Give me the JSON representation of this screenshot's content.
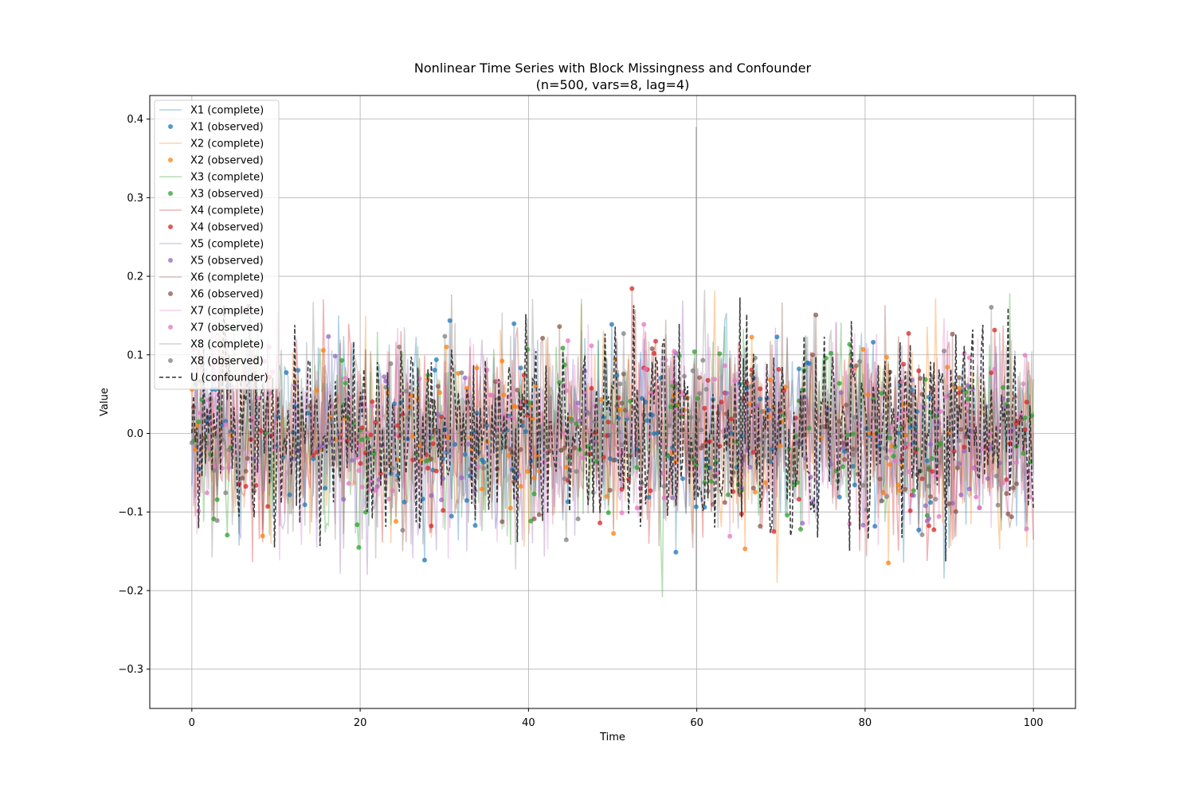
{
  "chart_data": {
    "type": "line",
    "title": "Nonlinear Time Series with Block Missingness and Confounder",
    "subtitle": "(n=500, vars=8, lag=4)",
    "xlabel": "Time",
    "ylabel": "Value",
    "xlim": [
      -5,
      105
    ],
    "ylim": [
      -0.35,
      0.43
    ],
    "x_ticks": [
      0,
      20,
      40,
      60,
      80,
      100
    ],
    "y_ticks": [
      -0.3,
      -0.2,
      -0.1,
      0.0,
      0.1,
      0.2,
      0.3,
      0.4
    ],
    "x_tick_labels": [
      "0",
      "20",
      "40",
      "60",
      "80",
      "100"
    ],
    "y_tick_labels": [
      "−0.3",
      "−0.2",
      "−0.1",
      "0.0",
      "0.1",
      "0.2",
      "0.3",
      "0.4"
    ],
    "grid": true,
    "legend_position": "top-left",
    "n_points": 500,
    "series": [
      {
        "name": "X1 (complete)",
        "kind": "line",
        "color": "#1f77b4"
      },
      {
        "name": "X1 (observed)",
        "kind": "marker",
        "color": "#1f77b4"
      },
      {
        "name": "X2 (complete)",
        "kind": "line",
        "color": "#ff7f0e"
      },
      {
        "name": "X2 (observed)",
        "kind": "marker",
        "color": "#ff7f0e"
      },
      {
        "name": "X3 (complete)",
        "kind": "line",
        "color": "#2ca02c"
      },
      {
        "name": "X3 (observed)",
        "kind": "marker",
        "color": "#2ca02c"
      },
      {
        "name": "X4 (complete)",
        "kind": "line",
        "color": "#d62728"
      },
      {
        "name": "X4 (observed)",
        "kind": "marker",
        "color": "#d62728"
      },
      {
        "name": "X5 (complete)",
        "kind": "line",
        "color": "#9467bd"
      },
      {
        "name": "X5 (observed)",
        "kind": "marker",
        "color": "#9467bd"
      },
      {
        "name": "X6 (complete)",
        "kind": "line",
        "color": "#8c564b"
      },
      {
        "name": "X6 (observed)",
        "kind": "marker",
        "color": "#8c564b"
      },
      {
        "name": "X7 (complete)",
        "kind": "line",
        "color": "#e377c2"
      },
      {
        "name": "X7 (observed)",
        "kind": "marker",
        "color": "#e377c2"
      },
      {
        "name": "X8 (complete)",
        "kind": "line",
        "color": "#7f7f7f"
      },
      {
        "name": "X8 (observed)",
        "kind": "marker",
        "color": "#7f7f7f"
      },
      {
        "name": "U (confounder)",
        "kind": "dashed",
        "color": "#333333"
      }
    ]
  }
}
